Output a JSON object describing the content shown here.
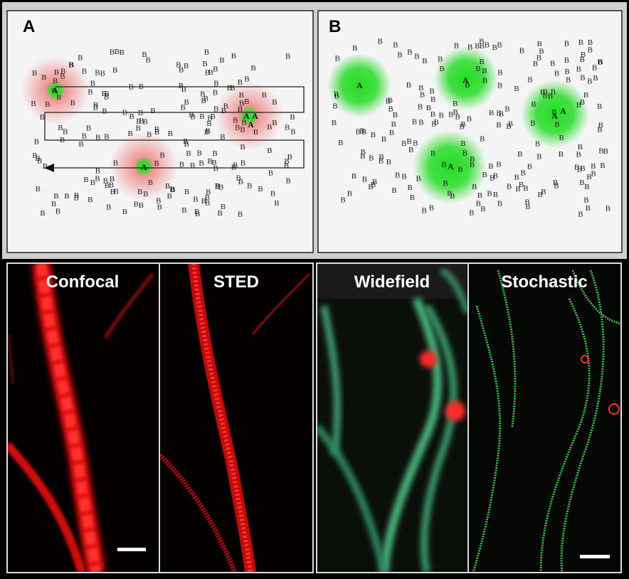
{
  "figure": {
    "panels": [
      {
        "label": "A",
        "target": "A",
        "background": "B"
      },
      {
        "label": "B",
        "target": "A",
        "background": "B"
      }
    ],
    "images": [
      {
        "label": "Confocal"
      },
      {
        "label": "STED"
      },
      {
        "label": "Widefield"
      },
      {
        "label": "Stochastic"
      }
    ]
  }
}
